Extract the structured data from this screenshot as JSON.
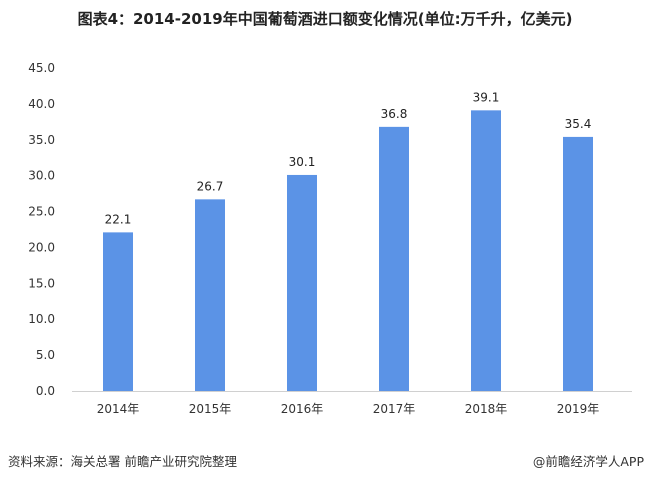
{
  "chart_data": {
    "type": "bar",
    "title": "图表4：2014-2019年中国葡萄酒进口额变化情况(单位:万千升，亿美元)",
    "categories": [
      "2014年",
      "2015年",
      "2016年",
      "2017年",
      "2018年",
      "2019年"
    ],
    "values": [
      22.1,
      26.7,
      30.1,
      36.8,
      39.1,
      35.4
    ],
    "data_labels": [
      "22.1",
      "26.7",
      "30.1",
      "36.8",
      "39.1",
      "35.4"
    ],
    "yticks": [
      "0.0",
      "5.0",
      "10.0",
      "15.0",
      "20.0",
      "25.0",
      "30.0",
      "35.0",
      "40.0",
      "45.0"
    ],
    "ylim": [
      0,
      45
    ],
    "xlabel": "",
    "ylabel": "",
    "grid": false,
    "bar_color": "#5b93e6"
  },
  "footer": {
    "source": "资料来源：海关总署 前瞻产业研究院整理",
    "credit": "@前瞻经济学人APP"
  }
}
